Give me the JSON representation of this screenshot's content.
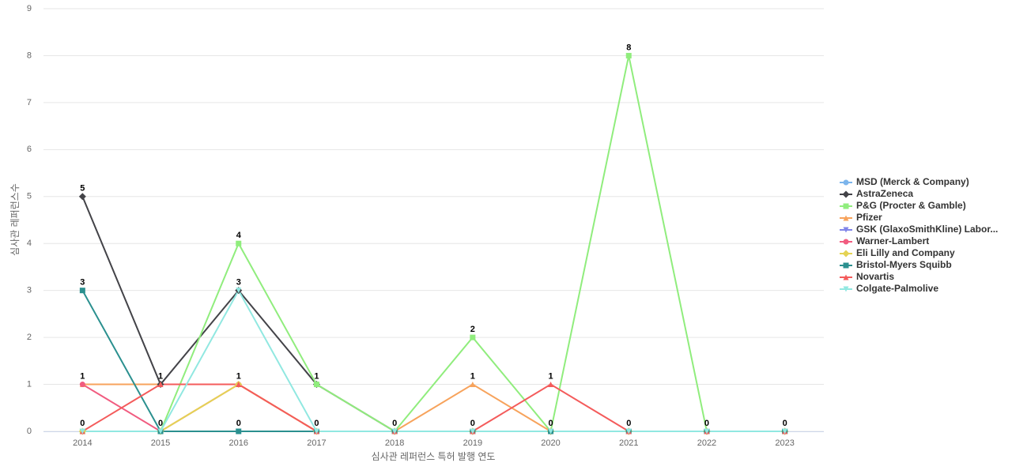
{
  "chart_data": {
    "type": "line",
    "x_label": "심사관 레퍼런스 특허 발행 연도",
    "y_label": "심사관 레퍼런스수",
    "categories": [
      "2014",
      "2015",
      "2016",
      "2017",
      "2018",
      "2019",
      "2020",
      "2021",
      "2022",
      "2023"
    ],
    "ylim": [
      0,
      9
    ],
    "yticks": [
      0,
      1,
      2,
      3,
      4,
      5,
      6,
      7,
      8,
      9
    ],
    "grid": true,
    "legend": "right",
    "series": [
      {
        "name": "MSD (Merck & Company)",
        "color": "#7cb5ec",
        "marker": "circle",
        "values": [
          0,
          0,
          0,
          0,
          0,
          0,
          0,
          0,
          0,
          0
        ]
      },
      {
        "name": "AstraZeneca",
        "color": "#434348",
        "marker": "diamond",
        "values": [
          5,
          1,
          3,
          1,
          0,
          0,
          0,
          0,
          0,
          0
        ]
      },
      {
        "name": "P&G (Procter & Gamble)",
        "color": "#90ed7d",
        "marker": "square",
        "values": [
          0,
          0,
          4,
          1,
          0,
          2,
          0,
          8,
          0,
          0
        ]
      },
      {
        "name": "Pfizer",
        "color": "#f7a35c",
        "marker": "triangle",
        "values": [
          1,
          1,
          1,
          0,
          0,
          1,
          0,
          0,
          0,
          0
        ]
      },
      {
        "name": "GSK (GlaxoSmithKline) Labor...",
        "color": "#8085e9",
        "marker": "triangle-down",
        "values": [
          0,
          0,
          0,
          0,
          0,
          0,
          0,
          0,
          0,
          0
        ]
      },
      {
        "name": "Warner-Lambert",
        "color": "#f15c80",
        "marker": "circle",
        "values": [
          1,
          0,
          1,
          0,
          0,
          0,
          0,
          0,
          0,
          0
        ]
      },
      {
        "name": "Eli Lilly and Company",
        "color": "#e4d354",
        "marker": "diamond",
        "values": [
          0,
          0,
          1,
          0,
          0,
          0,
          0,
          0,
          0,
          0
        ]
      },
      {
        "name": "Bristol-Myers Squibb",
        "color": "#2b908f",
        "marker": "square",
        "values": [
          3,
          0,
          0,
          0,
          0,
          0,
          0,
          0,
          0,
          0
        ]
      },
      {
        "name": "Novartis",
        "color": "#f45b5b",
        "marker": "triangle",
        "values": [
          0,
          1,
          1,
          0,
          0,
          0,
          1,
          0,
          0,
          0
        ]
      },
      {
        "name": "Colgate-Palmolive",
        "color": "#91e8e1",
        "marker": "triangle-down",
        "values": [
          0,
          0,
          3,
          0,
          0,
          0,
          0,
          0,
          0,
          0
        ]
      }
    ]
  }
}
